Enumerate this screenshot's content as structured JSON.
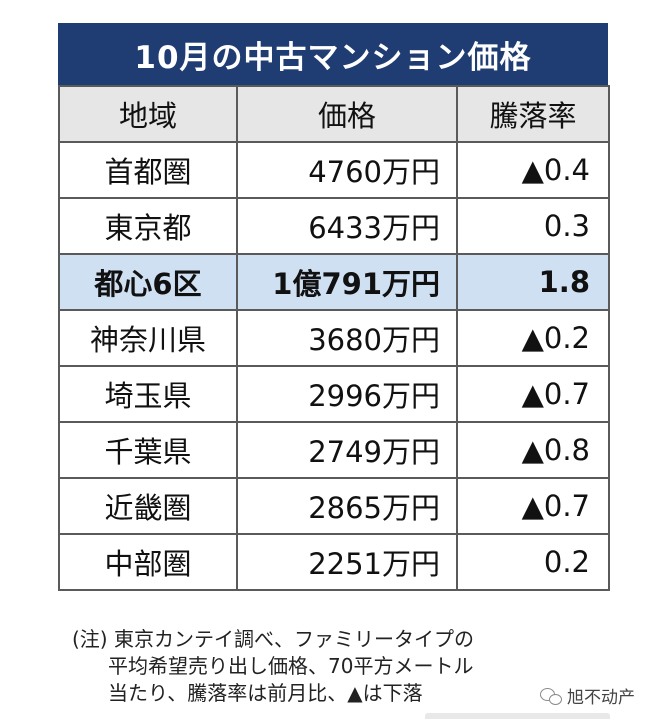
{
  "title": "10月の中古マンション価格",
  "headers": {
    "region": "地域",
    "price": "価格",
    "rate": "騰落率"
  },
  "rows": [
    {
      "region": "首都圏",
      "price": "4760万円",
      "rate": "▲0.4"
    },
    {
      "region": "東京都",
      "price": "6433万円",
      "rate": "0.3"
    },
    {
      "region": "都心6区",
      "price": "1億791万円",
      "rate": "1.8"
    },
    {
      "region": "神奈川県",
      "price": "3680万円",
      "rate": "▲0.2"
    },
    {
      "region": "埼玉県",
      "price": "2996万円",
      "rate": "▲0.7"
    },
    {
      "region": "千葉県",
      "price": "2749万円",
      "rate": "▲0.8"
    },
    {
      "region": "近畿圏",
      "price": "2865万円",
      "rate": "▲0.7"
    },
    {
      "region": "中部圏",
      "price": "2251万円",
      "rate": "0.2"
    }
  ],
  "note": {
    "line1": "(注) 東京カンテイ調べ、ファミリータイプの",
    "line2": "平均希望売り出し価格、70平方メートル",
    "line3": "当たり、騰落率は前月比、▲は下落"
  },
  "watermark": {
    "text": "旭不动产",
    "icon": "wechat-icon"
  },
  "colors": {
    "title_bg": "#1f3d73",
    "header_bg": "#e6e6e6",
    "highlight_bg": "#cfe0f3"
  }
}
